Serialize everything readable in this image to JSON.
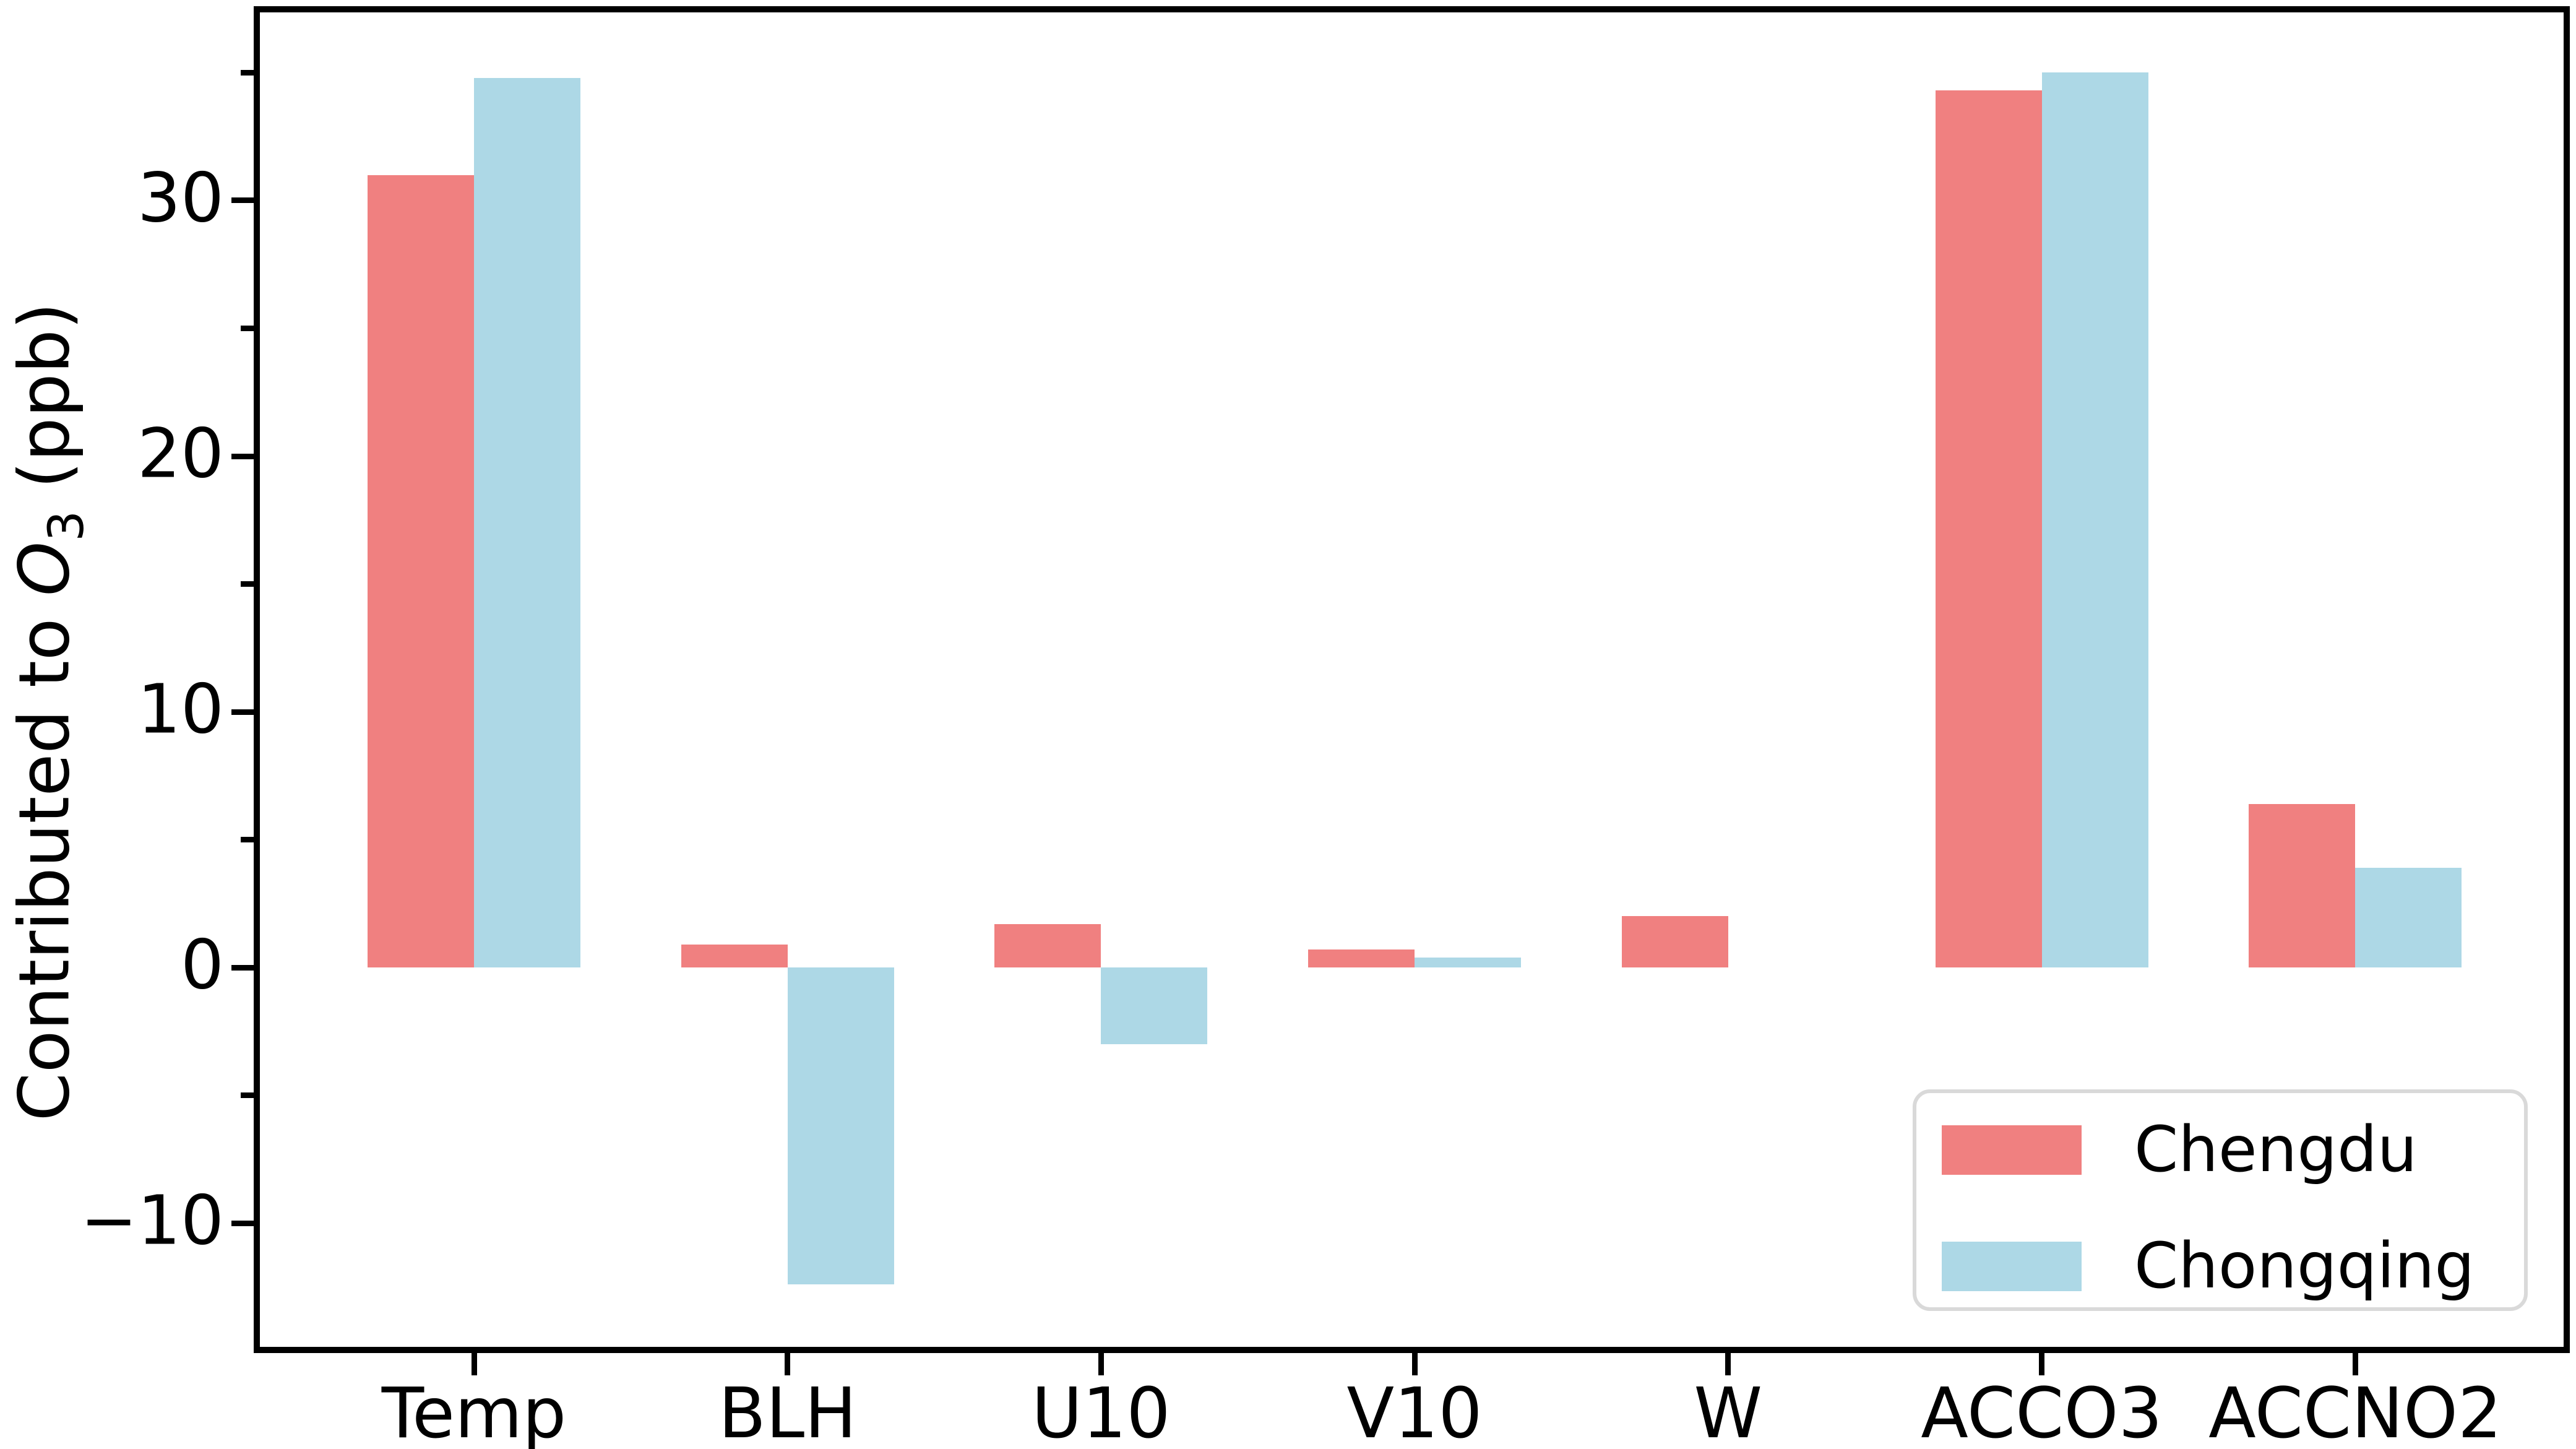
{
  "figure": {
    "background": "#ffffff"
  },
  "chart_data": {
    "type": "bar",
    "title": "",
    "xlabel": "",
    "ylabel_text": "Contributed to O3 (ppb)",
    "ylabel": {
      "prefix": "Contributed to ",
      "math_italic": "O",
      "subscript": "3",
      "suffix": " (ppb)"
    },
    "categories": [
      "Temp",
      "BLH",
      "U10",
      "V10",
      "W",
      "ACCO3",
      "ACCNO2"
    ],
    "series": [
      {
        "name": "Chengdu",
        "color": "#F08080",
        "values": [
          31.0,
          0.9,
          1.7,
          0.7,
          2.0,
          34.3,
          6.4
        ]
      },
      {
        "name": "Chongqing",
        "color": "#ADD8E6",
        "values": [
          34.8,
          -12.4,
          -3.0,
          0.4,
          0.0,
          35.0,
          3.9
        ]
      }
    ],
    "ylim": [
      -14.84,
      37.36
    ],
    "yticks": [
      {
        "value": 30,
        "label": "30"
      },
      {
        "value": 20,
        "label": "20"
      },
      {
        "value": 10,
        "label": "10"
      },
      {
        "value": 0,
        "label": "0"
      },
      {
        "value": -10,
        "label": "−10"
      }
    ],
    "yticks_minor": [
      35,
      25,
      15,
      5,
      -5
    ],
    "grid": false,
    "legend": {
      "position": "lower right"
    }
  }
}
